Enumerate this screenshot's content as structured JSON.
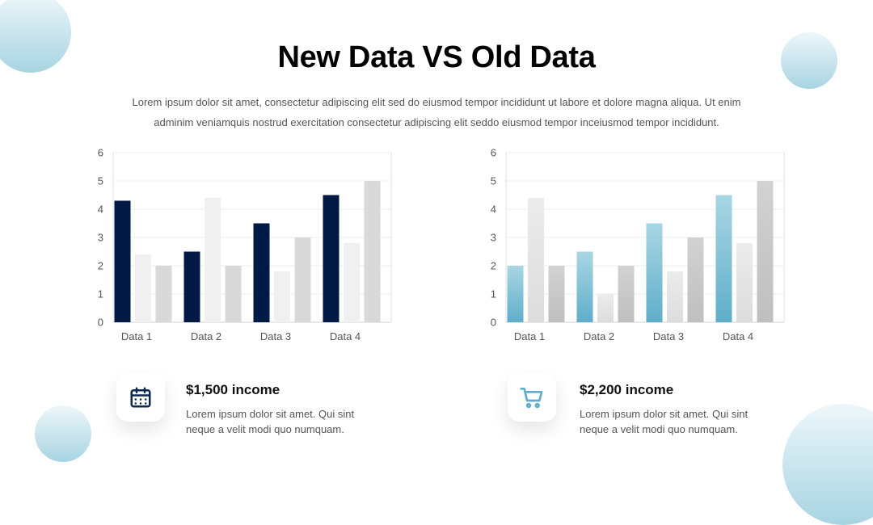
{
  "title": "New Data VS Old Data",
  "subtitle": "Lorem ipsum dolor sit amet, consectetur adipiscing elit sed do eiusmod tempor incididunt ut labore et dolore magna aliqua. Ut enim adminim veniamquis nostrud exercitation consectetur adipiscing elit seddo eiusmod tempor inceiusmod tempor incididunt.",
  "chart_data": [
    {
      "type": "bar",
      "categories": [
        "Data 1",
        "Data 2",
        "Data 3",
        "Data 4"
      ],
      "series": [
        {
          "values": [
            4.3,
            2.5,
            3.5,
            4.5
          ],
          "color": "#001a45"
        },
        {
          "values": [
            2.4,
            4.4,
            1.8,
            2.8
          ],
          "color": "#f0f0f0"
        },
        {
          "values": [
            2.0,
            2.0,
            3.0,
            5.0
          ],
          "color": "#d9d9d9"
        }
      ],
      "ylim": [
        0,
        6
      ],
      "yticks": [
        0,
        1,
        2,
        3,
        4,
        5,
        6
      ],
      "grid": true
    },
    {
      "type": "bar",
      "categories": [
        "Data 1",
        "Data 2",
        "Data 3",
        "Data 4"
      ],
      "series": [
        {
          "values": [
            2.0,
            2.5,
            3.5,
            4.5
          ],
          "color": "#5faec9"
        },
        {
          "values": [
            4.4,
            1.0,
            1.8,
            2.8
          ],
          "color": "#dcdcdc"
        },
        {
          "values": [
            2.0,
            2.0,
            3.0,
            5.0
          ],
          "color": "#bfbfbf"
        }
      ],
      "ylim": [
        0,
        6
      ],
      "yticks": [
        0,
        1,
        2,
        3,
        4,
        5,
        6
      ],
      "grid": true
    }
  ],
  "cards": [
    {
      "icon": "calendar-icon",
      "title": "$1,500 income",
      "text": "Lorem ipsum dolor sit amet. Qui sint neque a velit modi quo numquam.",
      "icon_color": "#0d2753"
    },
    {
      "icon": "shopping-cart-icon",
      "title": "$2,200 income",
      "text": "Lorem ipsum dolor sit amet. Qui sint neque a velit modi quo numquam.",
      "icon_color": "#5faec9"
    }
  ]
}
